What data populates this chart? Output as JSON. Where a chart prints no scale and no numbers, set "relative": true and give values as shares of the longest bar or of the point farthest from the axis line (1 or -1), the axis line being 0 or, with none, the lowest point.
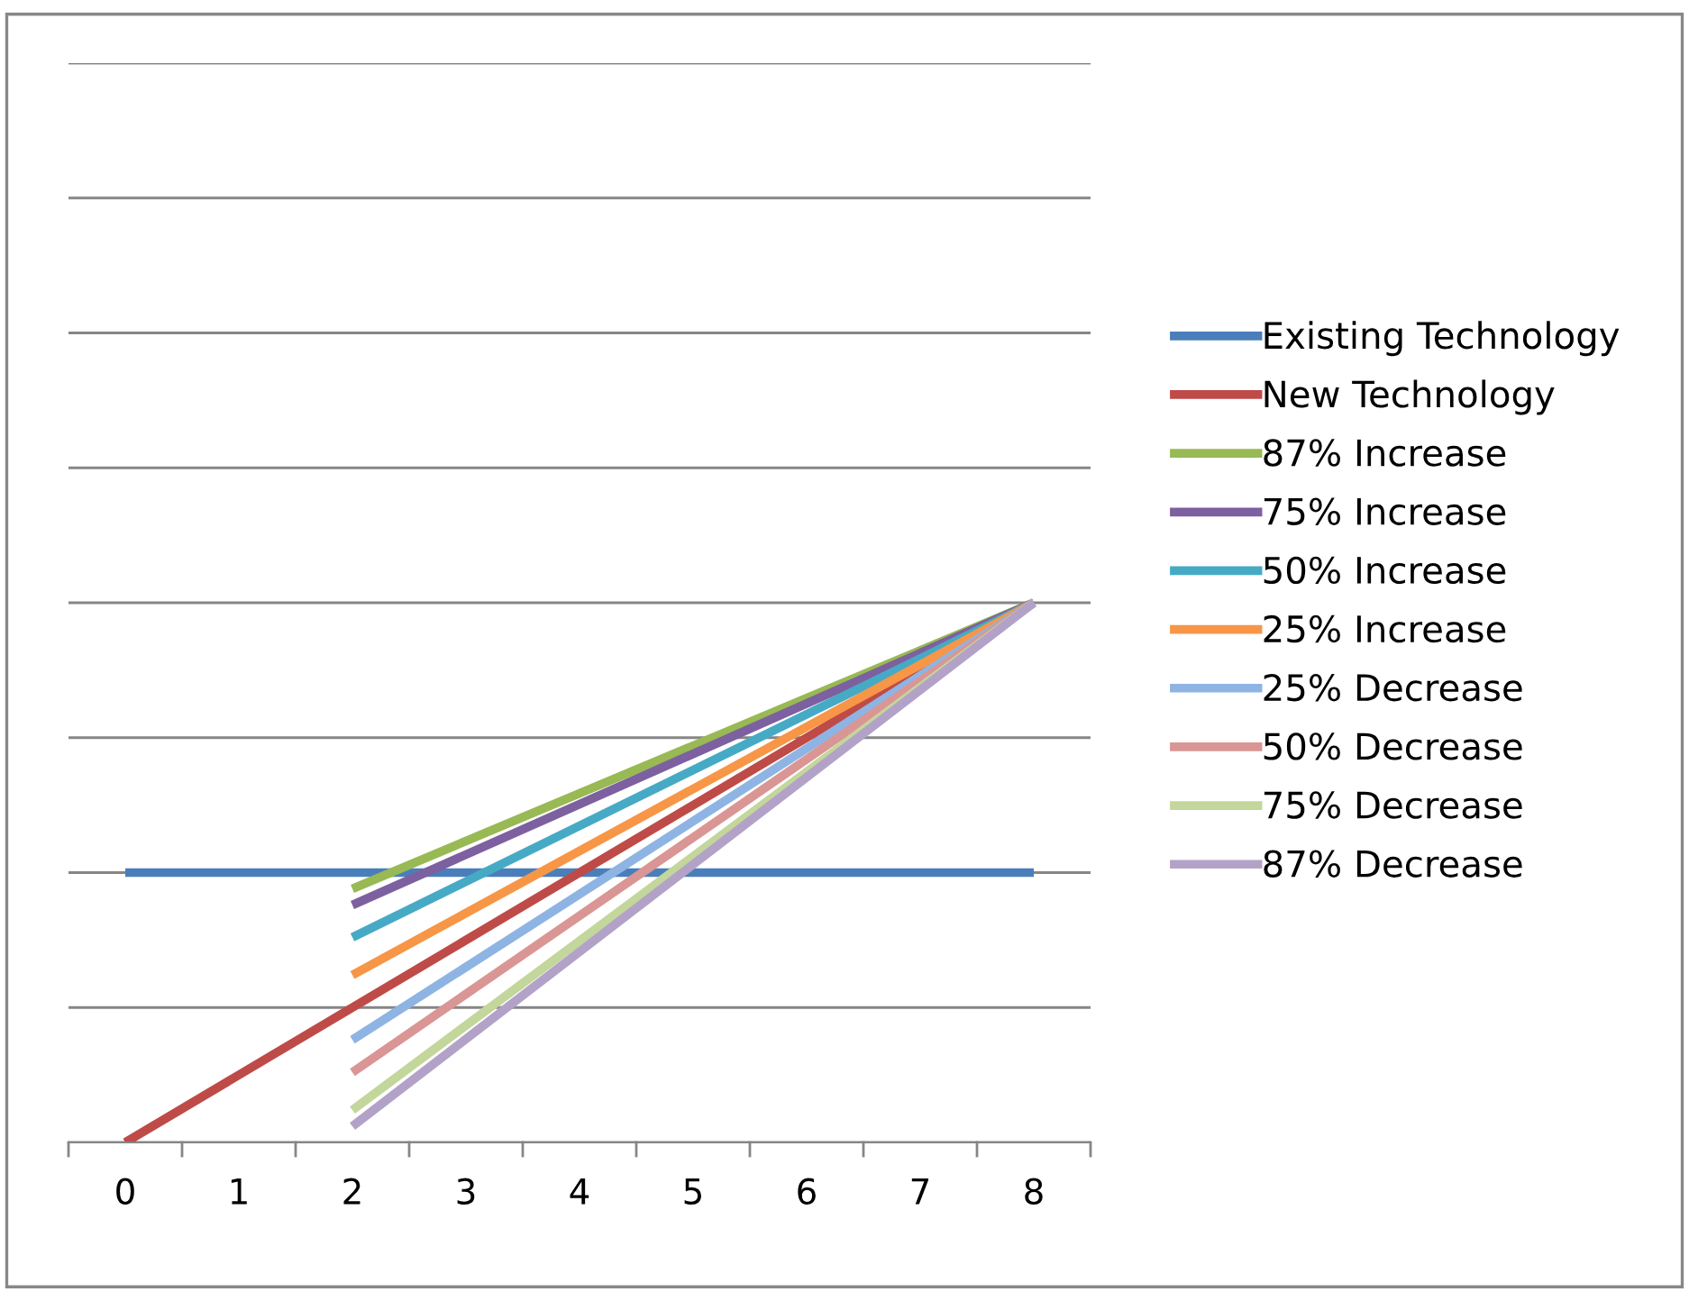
{
  "chart_data": {
    "type": "line",
    "relative": true,
    "grid": "y",
    "legend": "right",
    "tick_labels": "x",
    "marker": "none",
    "line_style": "solid",
    "categories": [
      "0",
      "1",
      "2",
      "3",
      "4",
      "5",
      "6",
      "7",
      "8"
    ],
    "series": [
      {
        "name": "Existing Technology",
        "color": "#4a7ebb",
        "values": [
          0.5,
          null,
          null,
          null,
          null,
          null,
          null,
          null,
          0.5
        ]
      },
      {
        "name": "New Technology",
        "color": "#be4b48",
        "values": [
          0,
          null,
          null,
          null,
          null,
          null,
          null,
          null,
          1
        ]
      },
      {
        "name": "87% Increase",
        "color": "#98b954",
        "values": [
          null,
          null,
          0.47,
          null,
          null,
          null,
          null,
          null,
          1
        ]
      },
      {
        "name": "75% Increase",
        "color": "#7d60a0",
        "values": [
          null,
          null,
          0.44,
          null,
          null,
          null,
          null,
          null,
          1
        ]
      },
      {
        "name": "50% Increase",
        "color": "#46aac5",
        "values": [
          null,
          null,
          0.38,
          null,
          null,
          null,
          null,
          null,
          1
        ]
      },
      {
        "name": "25% Increase",
        "color": "#f79646",
        "values": [
          null,
          null,
          0.31,
          null,
          null,
          null,
          null,
          null,
          1
        ]
      },
      {
        "name": "25% Decrease",
        "color": "#8eb4e3",
        "values": [
          null,
          null,
          0.19,
          null,
          null,
          null,
          null,
          null,
          1
        ]
      },
      {
        "name": "50% Decrease",
        "color": "#d99694",
        "values": [
          null,
          null,
          0.13,
          null,
          null,
          null,
          null,
          null,
          1
        ]
      },
      {
        "name": "75% Decrease",
        "color": "#c3d69b",
        "values": [
          null,
          null,
          0.06,
          null,
          null,
          null,
          null,
          null,
          1
        ]
      },
      {
        "name": "87% Decrease",
        "color": "#b3a2c7",
        "values": [
          null,
          null,
          0.03,
          null,
          null,
          null,
          null,
          null,
          1
        ]
      }
    ]
  }
}
